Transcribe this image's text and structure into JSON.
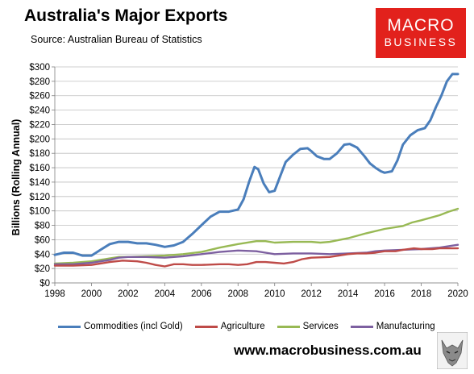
{
  "header": {
    "title": "Australia's Major Exports",
    "source": "Source:  Australian Bureau of Statistics"
  },
  "logo": {
    "line1": "MACRO",
    "line2": "BUSINESS"
  },
  "footer": {
    "website": "www.macrobusiness.com.au"
  },
  "colors": {
    "commodities": "#4a7ebb",
    "agriculture": "#be4b48",
    "services": "#98b954",
    "manufacturing": "#7d60a0",
    "logo_bg": "#e2211c"
  },
  "icons": {
    "mascot": "wolf-mascot-icon"
  },
  "chart_data": {
    "type": "line",
    "ylabel": "Billions (Rolling Annual)",
    "xlim": [
      1998,
      2020
    ],
    "ylim": [
      0,
      300
    ],
    "ytick_step": 20,
    "x_ticks": [
      "1998",
      "2000",
      "2002",
      "2004",
      "2006",
      "2008",
      "2010",
      "2012",
      "2014",
      "2016",
      "2018",
      "2020"
    ],
    "y_ticks": [
      "$0",
      "$20",
      "$40",
      "$60",
      "$80",
      "$100",
      "$120",
      "$140",
      "$160",
      "$180",
      "$200",
      "$220",
      "$240",
      "$260",
      "$280",
      "$300"
    ],
    "grid": "horizontal",
    "legend": "bottom",
    "series": [
      {
        "name": "Commodities (incl Gold)",
        "color": "#4a7ebb",
        "points": [
          [
            1998,
            39
          ],
          [
            1998.5,
            42
          ],
          [
            1999,
            42
          ],
          [
            1999.5,
            38
          ],
          [
            2000,
            38
          ],
          [
            2000.5,
            46
          ],
          [
            2001,
            54
          ],
          [
            2001.5,
            57
          ],
          [
            2002,
            57
          ],
          [
            2002.5,
            55
          ],
          [
            2003,
            55
          ],
          [
            2003.5,
            53
          ],
          [
            2004,
            50
          ],
          [
            2004.5,
            52
          ],
          [
            2005,
            57
          ],
          [
            2005.5,
            68
          ],
          [
            2006,
            80
          ],
          [
            2006.5,
            92
          ],
          [
            2007,
            99
          ],
          [
            2007.5,
            99
          ],
          [
            2008,
            102
          ],
          [
            2008.3,
            116
          ],
          [
            2008.6,
            140
          ],
          [
            2008.9,
            161
          ],
          [
            2009.1,
            158
          ],
          [
            2009.4,
            138
          ],
          [
            2009.7,
            126
          ],
          [
            2010,
            128
          ],
          [
            2010.3,
            148
          ],
          [
            2010.6,
            168
          ],
          [
            2011,
            178
          ],
          [
            2011.4,
            186
          ],
          [
            2011.8,
            187
          ],
          [
            2012,
            183
          ],
          [
            2012.3,
            176
          ],
          [
            2012.7,
            172
          ],
          [
            2013,
            172
          ],
          [
            2013.4,
            180
          ],
          [
            2013.8,
            192
          ],
          [
            2014.1,
            193
          ],
          [
            2014.5,
            188
          ],
          [
            2014.9,
            176
          ],
          [
            2015.2,
            166
          ],
          [
            2015.5,
            160
          ],
          [
            2015.8,
            155
          ],
          [
            2016,
            153
          ],
          [
            2016.4,
            155
          ],
          [
            2016.7,
            170
          ],
          [
            2017,
            192
          ],
          [
            2017.4,
            205
          ],
          [
            2017.8,
            212
          ],
          [
            2018.2,
            215
          ],
          [
            2018.5,
            226
          ],
          [
            2018.8,
            244
          ],
          [
            2019.1,
            260
          ],
          [
            2019.4,
            280
          ],
          [
            2019.7,
            290
          ],
          [
            2020,
            290
          ]
        ]
      },
      {
        "name": "Agriculture",
        "color": "#be4b48",
        "points": [
          [
            1998,
            24
          ],
          [
            1999,
            24
          ],
          [
            2000,
            25
          ],
          [
            2001,
            29
          ],
          [
            2001.7,
            31
          ],
          [
            2002.5,
            30
          ],
          [
            2003,
            28
          ],
          [
            2003.5,
            25
          ],
          [
            2004,
            23
          ],
          [
            2004.5,
            26
          ],
          [
            2005,
            26
          ],
          [
            2005.5,
            25
          ],
          [
            2006,
            25
          ],
          [
            2007,
            26
          ],
          [
            2007.5,
            26
          ],
          [
            2008,
            25
          ],
          [
            2008.5,
            26
          ],
          [
            2009,
            29
          ],
          [
            2009.5,
            29
          ],
          [
            2010,
            28
          ],
          [
            2010.5,
            27
          ],
          [
            2011,
            29
          ],
          [
            2011.5,
            33
          ],
          [
            2012,
            35
          ],
          [
            2013,
            36
          ],
          [
            2013.5,
            38
          ],
          [
            2014,
            40
          ],
          [
            2014.5,
            41
          ],
          [
            2015,
            41
          ],
          [
            2015.5,
            42
          ],
          [
            2016,
            44
          ],
          [
            2016.6,
            44
          ],
          [
            2017,
            46
          ],
          [
            2017.6,
            48
          ],
          [
            2018,
            47
          ],
          [
            2018.6,
            47
          ],
          [
            2019,
            48
          ],
          [
            2019.5,
            48
          ],
          [
            2020,
            48
          ]
        ]
      },
      {
        "name": "Services",
        "color": "#98b954",
        "points": [
          [
            1998,
            27
          ],
          [
            1999,
            28
          ],
          [
            2000,
            30
          ],
          [
            2001,
            34
          ],
          [
            2001.5,
            36
          ],
          [
            2002,
            36
          ],
          [
            2003,
            37
          ],
          [
            2004,
            38
          ],
          [
            2005,
            40
          ],
          [
            2006,
            43
          ],
          [
            2007,
            49
          ],
          [
            2008,
            54
          ],
          [
            2009,
            58
          ],
          [
            2009.5,
            58
          ],
          [
            2010,
            56
          ],
          [
            2011,
            57
          ],
          [
            2012,
            57
          ],
          [
            2012.5,
            56
          ],
          [
            2013,
            57
          ],
          [
            2014,
            62
          ],
          [
            2015,
            69
          ],
          [
            2016,
            75
          ],
          [
            2017,
            79
          ],
          [
            2017.5,
            84
          ],
          [
            2018,
            87
          ],
          [
            2019,
            94
          ],
          [
            2019.5,
            99
          ],
          [
            2020,
            103
          ]
        ]
      },
      {
        "name": "Manufacturing",
        "color": "#7d60a0",
        "points": [
          [
            1998,
            26
          ],
          [
            1999,
            26
          ],
          [
            2000,
            28
          ],
          [
            2001,
            32
          ],
          [
            2001.5,
            35
          ],
          [
            2002,
            36
          ],
          [
            2003,
            36
          ],
          [
            2004,
            35
          ],
          [
            2005,
            37
          ],
          [
            2006,
            40
          ],
          [
            2007,
            43
          ],
          [
            2008,
            45
          ],
          [
            2009,
            44
          ],
          [
            2009.5,
            42
          ],
          [
            2010,
            40
          ],
          [
            2011,
            41
          ],
          [
            2012,
            41
          ],
          [
            2013,
            40
          ],
          [
            2014,
            41
          ],
          [
            2015,
            42
          ],
          [
            2015.5,
            44
          ],
          [
            2016,
            45
          ],
          [
            2017,
            46
          ],
          [
            2018,
            47
          ],
          [
            2019,
            49
          ],
          [
            2019.5,
            51
          ],
          [
            2020,
            53
          ]
        ]
      }
    ]
  }
}
